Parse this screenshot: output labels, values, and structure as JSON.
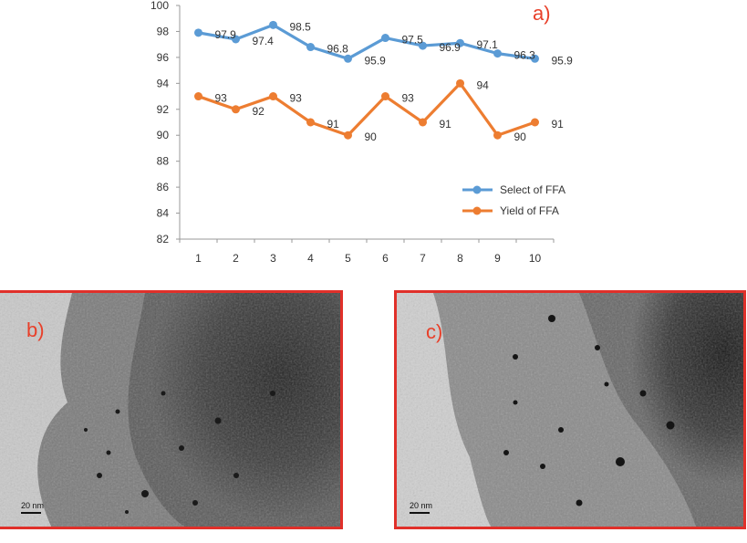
{
  "chart_data": {
    "type": "line",
    "panel_label": "a)",
    "x": [
      1,
      2,
      3,
      4,
      5,
      6,
      7,
      8,
      9,
      10
    ],
    "ylim": [
      82,
      100
    ],
    "yticks": [
      82,
      84,
      86,
      88,
      90,
      92,
      94,
      96,
      98,
      100
    ],
    "grid": false,
    "legend_position": "bottom-right",
    "series": [
      {
        "name": "Select of FFA",
        "color": "#5b9bd5",
        "values": [
          97.9,
          97.4,
          98.5,
          96.8,
          95.9,
          97.5,
          96.9,
          97.1,
          96.3,
          95.9
        ]
      },
      {
        "name": "Yield of FFA",
        "color": "#ed7d31",
        "values": [
          93,
          92,
          93,
          91,
          90,
          93,
          91,
          94,
          90,
          91
        ]
      }
    ]
  },
  "micrographs": [
    {
      "label": "b)",
      "scale": "20 nm"
    },
    {
      "label": "c)",
      "scale": "20 nm"
    }
  ],
  "colors": {
    "frame": "#e0302a",
    "label": "#e8402a"
  }
}
